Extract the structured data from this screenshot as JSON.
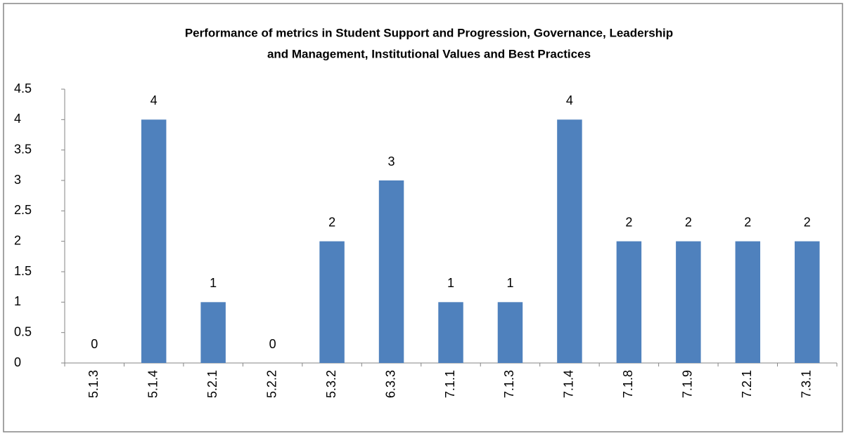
{
  "chart_data": {
    "type": "bar",
    "title": [
      "Performance of metrics in Student Support and Progression, Governance, Leadership",
      "and Management, Institutional Values and Best Practices"
    ],
    "categories": [
      "5.1.3",
      "5.1.4",
      "5.2.1",
      "5.2.2",
      "5.3.2",
      "6.3.3",
      "7.1.1",
      "7.1.3",
      "7.1.4",
      "7.1.8",
      "7.1.9",
      "7.2.1",
      "7.3.1"
    ],
    "values": [
      0,
      4,
      1,
      0,
      2,
      3,
      1,
      1,
      4,
      2,
      2,
      2,
      2
    ],
    "color": "#4f81bd",
    "ylim": [
      0,
      4.5
    ],
    "yticks": [
      0,
      0.5,
      1,
      1.5,
      2,
      2.5,
      3,
      3.5,
      4,
      4.5
    ],
    "grid": false
  }
}
